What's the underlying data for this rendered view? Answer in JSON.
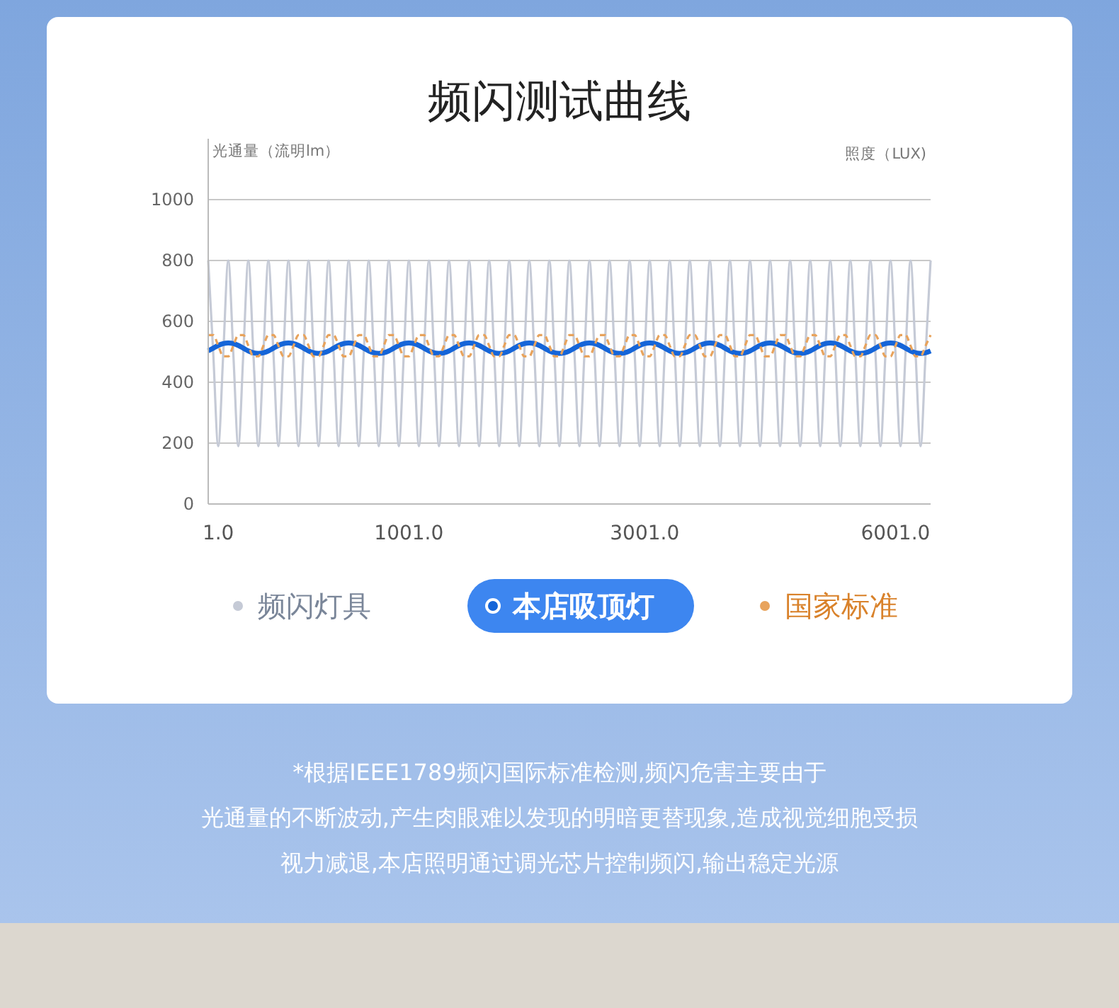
{
  "chart_data": {
    "type": "line",
    "title": "频闪测试曲线",
    "ylabel": "光通量（流明lm）",
    "y2label": "照度（LUX)",
    "annotations": [
      "*根据IEEE1789频闪国际标准检测,频闪危害主要由于",
      "光通量的不断波动,产生肉眼难以发现的明暗更替现象,造成视觉细胞受损",
      "视力减退,本店照明通过调光芯片控制频闪,输出稳定光源"
    ],
    "categories": [
      null,
      null,
      "1.0",
      null,
      null,
      null,
      null,
      null,
      null,
      null,
      null,
      null,
      null,
      null,
      null,
      null,
      null,
      null,
      null,
      null,
      null,
      null,
      null,
      null,
      null,
      null,
      null,
      null,
      null,
      null,
      null,
      null,
      null,
      null,
      null,
      null,
      null,
      null,
      null,
      null,
      "1001.0",
      null,
      null,
      null,
      null,
      null,
      null,
      null,
      null,
      null,
      null,
      null,
      null,
      null,
      null,
      null,
      null,
      null,
      null,
      null,
      null,
      null,
      null,
      null,
      null,
      null,
      null,
      null,
      null,
      null,
      null,
      null,
      null,
      null,
      null,
      null,
      null,
      null,
      null,
      null,
      null,
      null,
      null,
      null,
      null,
      null,
      null,
      "3001.0",
      null,
      null,
      null,
      null,
      null,
      null,
      null,
      null,
      null,
      null,
      null,
      null,
      null,
      null,
      null,
      null,
      null,
      null,
      null,
      null,
      null,
      null,
      null,
      null,
      null,
      null,
      null,
      null,
      null,
      null,
      null,
      null,
      null,
      null,
      null,
      null,
      null,
      null,
      null,
      null,
      null,
      null,
      null,
      null,
      null,
      null,
      null,
      null,
      null,
      "6001.0",
      null,
      null,
      null,
      null,
      null,
      null,
      null
    ],
    "series": [
      {
        "name": "频闪灯具",
        "color": "#c5cad6",
        "values": [
          800,
          495,
          190,
          495,
          800,
          495,
          190,
          495,
          800,
          495,
          190,
          495,
          800,
          495,
          190,
          495,
          800,
          495,
          190,
          495,
          800,
          495,
          190,
          495,
          800,
          495,
          190,
          495,
          800,
          495,
          190,
          495,
          800,
          495,
          190,
          495,
          800,
          495,
          190,
          495,
          800,
          495,
          190,
          495,
          800,
          495,
          190,
          495,
          800,
          495,
          190,
          495,
          800,
          495,
          190,
          495,
          800,
          495,
          190,
          495,
          800,
          495,
          190,
          495,
          800,
          495,
          190,
          495,
          800,
          495,
          190,
          495,
          800,
          495,
          190,
          495,
          800,
          495,
          190,
          495,
          800,
          495,
          190,
          495,
          800,
          495,
          190,
          495,
          800,
          495,
          190,
          495,
          800,
          495,
          190,
          495,
          800,
          495,
          190,
          495,
          800,
          495,
          190,
          495,
          800,
          495,
          190,
          495,
          800,
          495,
          190,
          495,
          800,
          495,
          190,
          495,
          800,
          495,
          190,
          495,
          800,
          495,
          190,
          495,
          800,
          495,
          190,
          495,
          800,
          495,
          190,
          495,
          800,
          495,
          190,
          495,
          800,
          495,
          190,
          495,
          800,
          495,
          190,
          495,
          800
        ]
      },
      {
        "name": "本店吸顶灯",
        "color": "#1565d8",
        "values": [
          503,
          512,
          521,
          527,
          529,
          527,
          521,
          512,
          503,
          497,
          495,
          497,
          503,
          512,
          521,
          527,
          529,
          527,
          521,
          512,
          503,
          497,
          495,
          497,
          503,
          512,
          521,
          527,
          529,
          527,
          521,
          512,
          503,
          497,
          495,
          497,
          503,
          512,
          521,
          527,
          529,
          527,
          521,
          512,
          503,
          497,
          495,
          497,
          503,
          512,
          521,
          527,
          529,
          527,
          521,
          512,
          503,
          497,
          495,
          497,
          503,
          512,
          521,
          527,
          529,
          527,
          521,
          512,
          503,
          497,
          495,
          497,
          503,
          512,
          521,
          527,
          529,
          527,
          521,
          512,
          503,
          497,
          495,
          497,
          503,
          512,
          521,
          527,
          529,
          527,
          521,
          512,
          503,
          497,
          495,
          497,
          503,
          512,
          521,
          527,
          529,
          527,
          521,
          512,
          503,
          497,
          495,
          497,
          503,
          512,
          521,
          527,
          529,
          527,
          521,
          512,
          503,
          497,
          495,
          497,
          503,
          512,
          521,
          527,
          529,
          527,
          521,
          512,
          503,
          497,
          495,
          497,
          503,
          512,
          521,
          527,
          529,
          527,
          521,
          512,
          503,
          497,
          495,
          497,
          503
        ]
      },
      {
        "name": "国家标准",
        "color": "#e8a35c",
        "line_style": "dashed",
        "values": [
          555,
          555,
          520,
          485,
          485,
          520,
          555,
          555,
          520,
          485,
          485,
          520,
          555,
          555,
          520,
          485,
          485,
          520,
          555,
          555,
          520,
          485,
          485,
          520,
          555,
          555,
          520,
          485,
          485,
          520,
          555,
          555,
          520,
          485,
          485,
          520,
          555,
          555,
          520,
          485,
          485,
          520,
          555,
          555,
          520,
          485,
          485,
          520,
          555,
          555,
          520,
          485,
          485,
          520,
          555,
          555,
          520,
          485,
          485,
          520,
          555,
          555,
          520,
          485,
          485,
          520,
          555,
          555,
          520,
          485,
          485,
          520,
          555,
          555,
          520,
          485,
          485,
          520,
          555,
          555,
          520,
          485,
          485,
          520,
          555,
          555,
          520,
          485,
          485,
          520,
          555,
          555,
          520,
          485,
          485,
          520,
          555,
          555,
          520,
          485,
          485,
          520,
          555,
          555,
          520,
          485,
          485,
          520,
          555,
          555,
          520,
          485,
          485,
          520,
          555,
          555,
          520,
          485,
          485,
          520,
          555,
          555,
          520,
          485,
          485,
          520,
          555,
          555,
          520,
          485,
          485,
          520,
          555,
          555,
          520,
          485,
          485,
          520,
          555,
          555,
          520,
          485,
          485,
          520,
          555
        ]
      }
    ],
    "ylim": [
      0,
      1200
    ],
    "yticks": [
      0,
      200,
      400,
      600,
      800,
      1000
    ],
    "grid": "y",
    "legend": "bottom",
    "line_style": "solid"
  }
}
